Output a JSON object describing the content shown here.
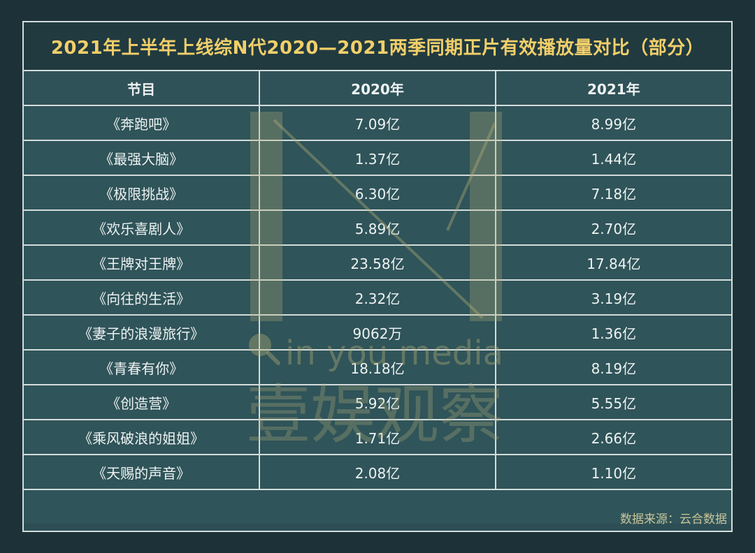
{
  "chart_data": {
    "type": "table",
    "title": "2021年上半年上线综N代2020—2021两季同期正片有效播放量对比（部分）",
    "columns": [
      "节目",
      "2020年",
      "2021年"
    ],
    "rows": [
      [
        "《奔跑吧》",
        "7.09亿",
        "8.99亿"
      ],
      [
        "《最强大脑》",
        "1.37亿",
        "1.44亿"
      ],
      [
        "《极限挑战》",
        "6.30亿",
        "7.18亿"
      ],
      [
        "《欢乐喜剧人》",
        "5.89亿",
        "2.70亿"
      ],
      [
        "《王牌对王牌》",
        "23.58亿",
        "17.84亿"
      ],
      [
        "《向往的生活》",
        "2.32亿",
        "3.19亿"
      ],
      [
        "《妻子的浪漫旅行》",
        "9062万",
        "1.36亿"
      ],
      [
        "《青春有你》",
        "18.18亿",
        "8.19亿"
      ],
      [
        "《创造营》",
        "5.92亿",
        "5.55亿"
      ],
      [
        "《乘风破浪的姐姐》",
        "1.71亿",
        "2.66亿"
      ],
      [
        "《天赐的声音》",
        "2.08亿",
        "1.10亿"
      ]
    ],
    "source": "数据来源：云合数据"
  },
  "watermark": {
    "tagline": "in you media",
    "name": "壹娱观察"
  },
  "colors": {
    "background": "#1c3238",
    "table": "#2f5459",
    "title_text": "#f2cf6a",
    "body_text": "#eef2f2",
    "watermark": "#b7b07a"
  }
}
